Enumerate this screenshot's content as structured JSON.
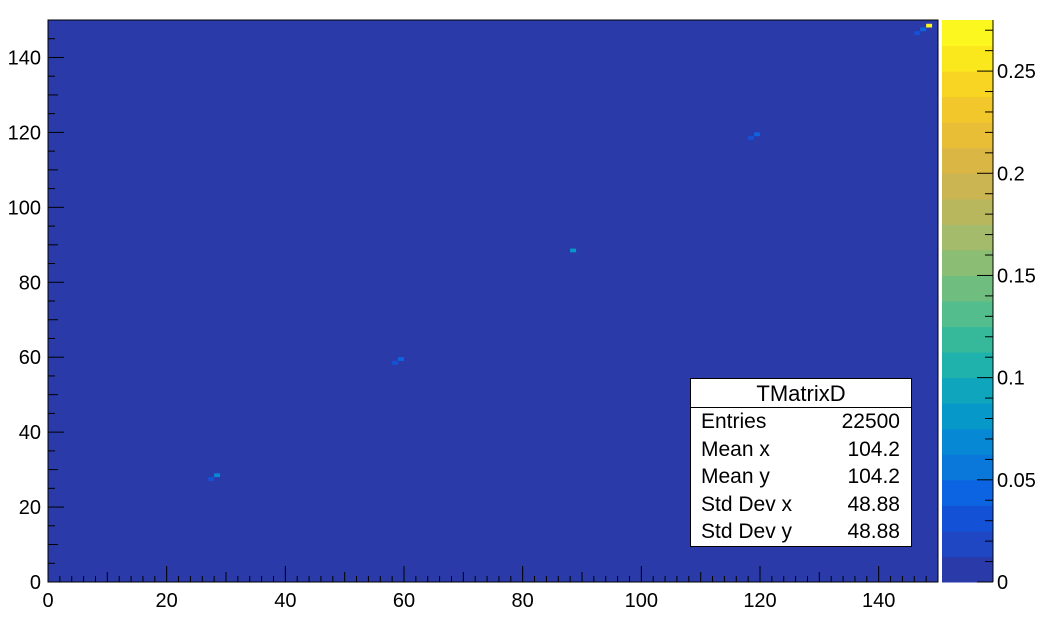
{
  "chart_data": {
    "type": "heatmap",
    "x_range": [
      0,
      150
    ],
    "y_range": [
      0,
      150
    ],
    "x_ticks": [
      "0",
      "20",
      "40",
      "60",
      "80",
      "100",
      "120",
      "140"
    ],
    "y_ticks": [
      "0",
      "20",
      "40",
      "60",
      "80",
      "100",
      "120",
      "140"
    ],
    "z_range": [
      0,
      0.275
    ],
    "z_ticks": [
      "0",
      "0.05",
      "0.1",
      "0.15",
      "0.2",
      "0.25"
    ],
    "background_value": 0,
    "cells": [
      {
        "x": 27,
        "y": 27,
        "v": 0.03
      },
      {
        "x": 28,
        "y": 28,
        "v": 0.07
      },
      {
        "x": 58,
        "y": 58,
        "v": 0.03
      },
      {
        "x": 59,
        "y": 59,
        "v": 0.04
      },
      {
        "x": 88,
        "y": 88,
        "v": 0.08
      },
      {
        "x": 118,
        "y": 118,
        "v": 0.03
      },
      {
        "x": 119,
        "y": 119,
        "v": 0.04
      },
      {
        "x": 146,
        "y": 146,
        "v": 0.03
      },
      {
        "x": 147,
        "y": 147,
        "v": 0.04
      },
      {
        "x": 148,
        "y": 148,
        "v": 0.27
      }
    ],
    "palette": [
      "#2a3ba9",
      "#1f47c4",
      "#1352d6",
      "#0c64e3",
      "#0a78da",
      "#0788d4",
      "#0598c9",
      "#0ea5bd",
      "#1fb1ab",
      "#36b99b",
      "#53bd8d",
      "#6fbe80",
      "#8bbd75",
      "#a3bb6a",
      "#b9b75e",
      "#cbb552",
      "#dab645",
      "#e8be37",
      "#f1c72c",
      "#f8d522",
      "#fbe81c",
      "#fbf71f"
    ],
    "grid": false
  },
  "stats_box": {
    "title": "TMatrixD",
    "rows": [
      {
        "label": "Entries",
        "value": "22500"
      },
      {
        "label": "Mean x",
        "value": "104.2"
      },
      {
        "label": "Mean y",
        "value": "104.2"
      },
      {
        "label": "Std Dev x",
        "value": "48.88"
      },
      {
        "label": "Std Dev y",
        "value": "48.88"
      }
    ]
  }
}
